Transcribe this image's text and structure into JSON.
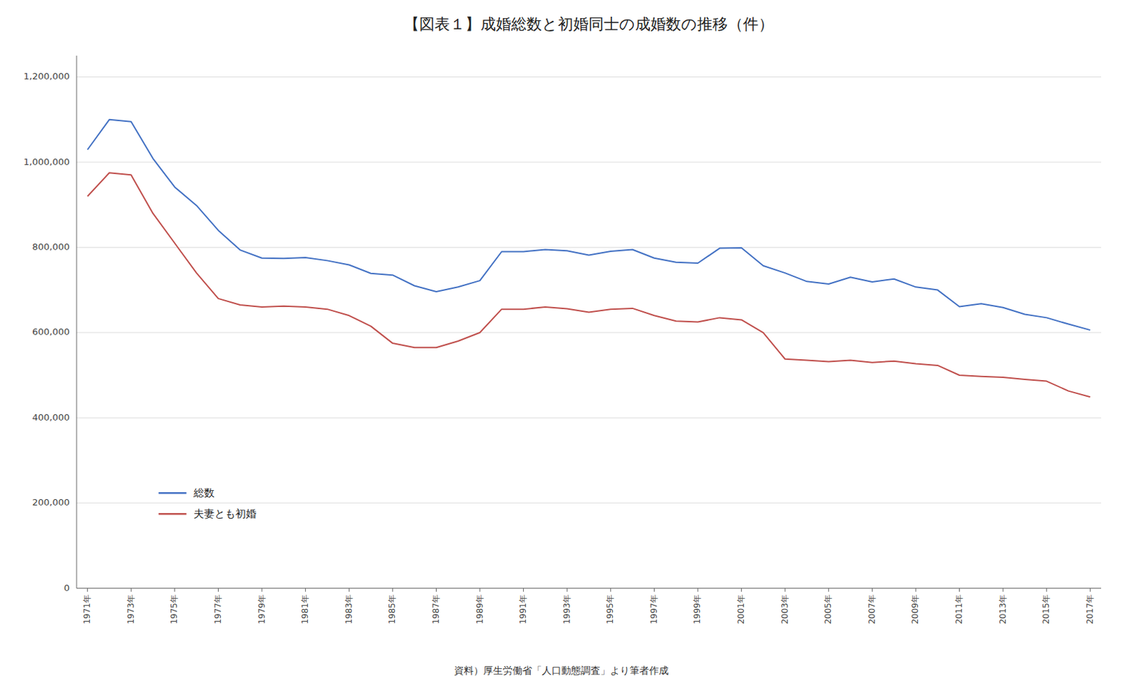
{
  "chart_data": {
    "type": "line",
    "title": "【図表１】成婚総数と初婚同士の成婚数の推移（件）",
    "annotations": [
      "資料）厚生労働省「人口動態調査」より筆者作成"
    ],
    "x": [
      1971,
      1972,
      1973,
      1974,
      1975,
      1976,
      1977,
      1978,
      1979,
      1980,
      1981,
      1982,
      1983,
      1984,
      1985,
      1986,
      1987,
      1988,
      1989,
      1990,
      1991,
      1992,
      1993,
      1994,
      1995,
      1996,
      1997,
      1998,
      1999,
      2000,
      2001,
      2002,
      2003,
      2004,
      2005,
      2006,
      2007,
      2008,
      2009,
      2010,
      2011,
      2012,
      2013,
      2014,
      2015,
      2016,
      2017
    ],
    "series": [
      {
        "name": "総数",
        "color": "#4472C4",
        "values": [
          1029405,
          1099984,
          1095070,
          1008870,
          941628,
          898400,
          840000,
          794000,
          775000,
          774000,
          776000,
          769000,
          759000,
          739000,
          735000,
          710000,
          696000,
          707000,
          722000,
          790000,
          790000,
          795000,
          792000,
          782000,
          791000,
          795000,
          775000,
          765000,
          763000,
          798000,
          799000,
          757000,
          740000,
          720000,
          714000,
          730000,
          719000,
          726000,
          707000,
          700000,
          661000,
          668000,
          659000,
          643000,
          635000,
          620000,
          606000
        ]
      },
      {
        "name": "夫妻とも初婚",
        "color": "#C0504D",
        "values": [
          920000,
          975000,
          970000,
          880000,
          810000,
          740000,
          680000,
          665000,
          660000,
          662000,
          660000,
          655000,
          640000,
          615000,
          575000,
          565000,
          565000,
          580000,
          600000,
          655000,
          655000,
          660000,
          656000,
          648000,
          655000,
          657000,
          640000,
          627000,
          625000,
          635000,
          630000,
          600000,
          538000,
          535000,
          532000,
          535000,
          530000,
          533000,
          527000,
          523000,
          500000,
          497000,
          495000,
          490000,
          486000,
          463000,
          449000
        ]
      }
    ],
    "xlim": [
      1970.5,
      2017.5
    ],
    "xticks": [
      {
        "value": 1971,
        "label": "1971年"
      },
      {
        "value": 1973,
        "label": "1973年"
      },
      {
        "value": 1975,
        "label": "1975年"
      },
      {
        "value": 1977,
        "label": "1977年"
      },
      {
        "value": 1979,
        "label": "1979年"
      },
      {
        "value": 1981,
        "label": "1981年"
      },
      {
        "value": 1983,
        "label": "1983年"
      },
      {
        "value": 1985,
        "label": "1985年"
      },
      {
        "value": 1987,
        "label": "1987年"
      },
      {
        "value": 1989,
        "label": "1989年"
      },
      {
        "value": 1991,
        "label": "1991年"
      },
      {
        "value": 1993,
        "label": "1993年"
      },
      {
        "value": 1995,
        "label": "1995年"
      },
      {
        "value": 1997,
        "label": "1997年"
      },
      {
        "value": 1999,
        "label": "1999年"
      },
      {
        "value": 2001,
        "label": "2001年"
      },
      {
        "value": 2003,
        "label": "2003年"
      },
      {
        "value": 2005,
        "label": "2005年"
      },
      {
        "value": 2007,
        "label": "2007年"
      },
      {
        "value": 2009,
        "label": "2009年"
      },
      {
        "value": 2011,
        "label": "2011年"
      },
      {
        "value": 2013,
        "label": "2013年"
      },
      {
        "value": 2015,
        "label": "2015年"
      },
      {
        "value": 2017,
        "label": "2017年"
      }
    ],
    "ylim": [
      0,
      1250000
    ],
    "yticks": [
      0,
      {
        "value": 200000,
        "label": "200,000"
      },
      {
        "value": 400000,
        "label": "400,000"
      },
      {
        "value": 600000,
        "label": "600,000"
      },
      {
        "value": 800000,
        "label": "800,000"
      },
      {
        "value": 1000000,
        "label": "1,000,000"
      },
      {
        "value": 1200000,
        "label": "1,200,000"
      }
    ],
    "grid": true,
    "legend": "lower left"
  }
}
